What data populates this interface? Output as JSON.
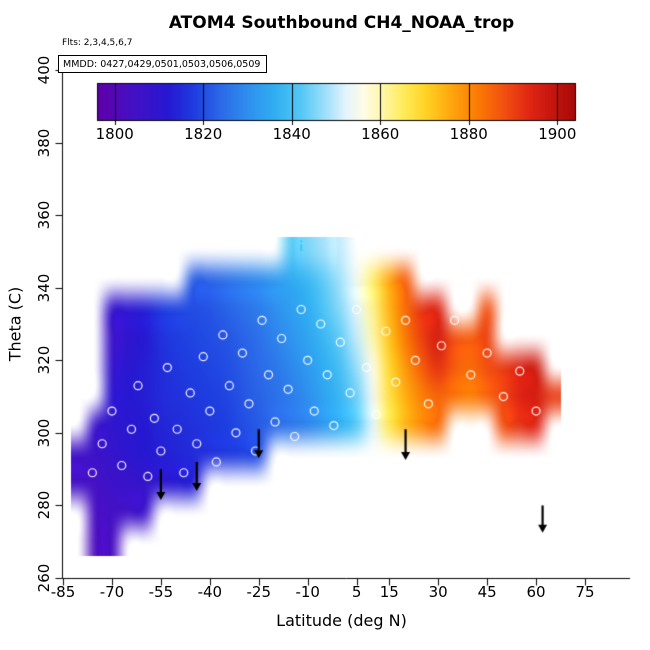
{
  "title": "ATOM4 Southbound CH4_NOAA_trop",
  "flights_note": "Flts: 2,3,4,5,6,7",
  "mmdd_note": "MMDD: 0427,0429,0501,0503,0506,0509",
  "x_axis": {
    "label": "Latitude (deg N)",
    "ticks": [
      -85,
      -70,
      -55,
      -40,
      -25,
      -10,
      5,
      15,
      30,
      45,
      60,
      75
    ]
  },
  "y_axis": {
    "label": "Theta (C)",
    "ticks": [
      260,
      280,
      300,
      320,
      340,
      360,
      380,
      400
    ]
  },
  "colorbar": {
    "ticks": [
      1800,
      1820,
      1840,
      1860,
      1880,
      1900
    ],
    "domain": [
      1796,
      1904
    ],
    "stops": [
      {
        "v": 1796,
        "c": "#5F00A8"
      },
      {
        "v": 1804,
        "c": "#4410C4"
      },
      {
        "v": 1812,
        "c": "#2618D2"
      },
      {
        "v": 1818,
        "c": "#1E3EE0"
      },
      {
        "v": 1824,
        "c": "#2B6AE8"
      },
      {
        "v": 1830,
        "c": "#2F8FEE"
      },
      {
        "v": 1836,
        "c": "#30AEF2"
      },
      {
        "v": 1842,
        "c": "#55C8F5"
      },
      {
        "v": 1848,
        "c": "#A5E2FA"
      },
      {
        "v": 1852,
        "c": "#E2F4FC"
      },
      {
        "v": 1856,
        "c": "#FFFCE8"
      },
      {
        "v": 1860,
        "c": "#FFF7B0"
      },
      {
        "v": 1865,
        "c": "#FFEC5C"
      },
      {
        "v": 1870,
        "c": "#FFD426"
      },
      {
        "v": 1876,
        "c": "#FFA60E"
      },
      {
        "v": 1882,
        "c": "#FB7A04"
      },
      {
        "v": 1888,
        "c": "#F24F10"
      },
      {
        "v": 1894,
        "c": "#DE2413"
      },
      {
        "v": 1904,
        "c": "#A80808"
      }
    ]
  },
  "chart_data": {
    "type": "heatmap",
    "title": "ATOM4 Southbound CH4_NOAA_trop",
    "xlabel": "Latitude (deg N)",
    "ylabel": "Theta (C)",
    "xlim": [
      -85,
      89
    ],
    "ylim": [
      260,
      400
    ],
    "value_scale_ticks": [
      1800,
      1820,
      1840,
      1860,
      1880,
      1900
    ],
    "x_bins": [
      -80,
      -75,
      -70,
      -65,
      -60,
      -55,
      -50,
      -45,
      -40,
      -35,
      -30,
      -25,
      -20,
      -15,
      -10,
      -5,
      0,
      5,
      10,
      15,
      20,
      25,
      30,
      35,
      40,
      45,
      50,
      55,
      60,
      65
    ],
    "y_bins": [
      270,
      278,
      286,
      294,
      302,
      310,
      318,
      326,
      334,
      342,
      350
    ],
    "values": [
      [
        null,
        1802,
        1803,
        null,
        null,
        null,
        null,
        null,
        null,
        null,
        null,
        null,
        null,
        null,
        null,
        null,
        null,
        null,
        null,
        null,
        null,
        null,
        null,
        null,
        null,
        null,
        null,
        null,
        null,
        null
      ],
      [
        null,
        1803,
        1804,
        1805,
        1806,
        null,
        null,
        null,
        null,
        null,
        null,
        null,
        null,
        null,
        null,
        null,
        null,
        null,
        null,
        null,
        null,
        null,
        null,
        null,
        null,
        null,
        null,
        null,
        null,
        null
      ],
      [
        1804,
        1804,
        1806,
        1807,
        1808,
        1810,
        1812,
        1813,
        null,
        null,
        null,
        null,
        null,
        null,
        null,
        null,
        null,
        null,
        null,
        null,
        null,
        null,
        null,
        null,
        null,
        null,
        null,
        null,
        null,
        null
      ],
      [
        1805,
        1806,
        1808,
        1810,
        1812,
        1813,
        1814,
        1815,
        1816,
        1817,
        1818,
        1820,
        null,
        null,
        null,
        null,
        null,
        null,
        null,
        null,
        null,
        null,
        null,
        null,
        null,
        null,
        null,
        null,
        null,
        null
      ],
      [
        null,
        1807,
        1809,
        1811,
        1812,
        1814,
        1815,
        1816,
        1817,
        1818,
        1820,
        1822,
        1824,
        1826,
        1828,
        1832,
        1836,
        1842,
        1852,
        1866,
        1874,
        1880,
        1884,
        null,
        null,
        null,
        1888,
        1892,
        1894,
        null
      ],
      [
        null,
        null,
        1810,
        1812,
        1813,
        1815,
        1816,
        1817,
        1818,
        1819,
        1821,
        1823,
        1825,
        1827,
        1830,
        1834,
        1838,
        1844,
        1854,
        1867,
        1875,
        1881,
        1885,
        1883,
        1881,
        1885,
        1889,
        1894,
        1896,
        1891
      ],
      [
        null,
        null,
        1808,
        1811,
        1813,
        1815,
        1817,
        1818,
        1819,
        1820,
        1822,
        1824,
        1826,
        1829,
        1832,
        1836,
        1840,
        1847,
        1856,
        1869,
        1878,
        1886,
        1892,
        1886,
        1884,
        1888,
        1891,
        1895,
        1897,
        null
      ],
      [
        null,
        null,
        1806,
        1809,
        1812,
        1816,
        1818,
        1819,
        1820,
        1821,
        1823,
        1825,
        1828,
        1831,
        1834,
        1838,
        1843,
        1850,
        1860,
        1872,
        1882,
        1890,
        1896,
        1888,
        1886,
        1890,
        null,
        null,
        null,
        null
      ],
      [
        null,
        null,
        1808,
        1810,
        1813,
        1817,
        1819,
        1820,
        1821,
        1823,
        1825,
        1827,
        1830,
        1833,
        1836,
        1841,
        1846,
        1852,
        1862,
        1874,
        1884,
        1892,
        1894,
        null,
        null,
        1888,
        null,
        null,
        null,
        null
      ],
      [
        null,
        null,
        null,
        null,
        null,
        null,
        null,
        1822,
        1823,
        1825,
        1827,
        1829,
        1832,
        1835,
        1838,
        1843,
        1848,
        1854,
        1864,
        1876,
        1886,
        null,
        null,
        null,
        null,
        null,
        null,
        null,
        null,
        null
      ],
      [
        null,
        null,
        null,
        null,
        null,
        null,
        null,
        null,
        null,
        null,
        null,
        null,
        null,
        1842,
        1845,
        1848,
        1850,
        null,
        null,
        null,
        null,
        null,
        null,
        null,
        null,
        null,
        null,
        null,
        null,
        null
      ]
    ],
    "profile_markers": [
      [
        -76,
        289
      ],
      [
        -73,
        297
      ],
      [
        -70,
        306
      ],
      [
        -67,
        291
      ],
      [
        -64,
        301
      ],
      [
        -62,
        313
      ],
      [
        -59,
        288
      ],
      [
        -57,
        304
      ],
      [
        -55,
        295
      ],
      [
        -53,
        318
      ],
      [
        -50,
        301
      ],
      [
        -48,
        289
      ],
      [
        -46,
        311
      ],
      [
        -44,
        297
      ],
      [
        -42,
        321
      ],
      [
        -40,
        306
      ],
      [
        -38,
        292
      ],
      [
        -36,
        327
      ],
      [
        -34,
        313
      ],
      [
        -32,
        300
      ],
      [
        -30,
        322
      ],
      [
        -28,
        308
      ],
      [
        -26,
        295
      ],
      [
        -24,
        331
      ],
      [
        -22,
        316
      ],
      [
        -20,
        303
      ],
      [
        -18,
        326
      ],
      [
        -16,
        312
      ],
      [
        -14,
        299
      ],
      [
        -12,
        334
      ],
      [
        -10,
        320
      ],
      [
        -8,
        306
      ],
      [
        -6,
        330
      ],
      [
        -4,
        316
      ],
      [
        -2,
        302
      ],
      [
        0,
        325
      ],
      [
        3,
        311
      ],
      [
        5,
        334
      ],
      [
        8,
        318
      ],
      [
        11,
        305
      ],
      [
        14,
        328
      ],
      [
        17,
        314
      ],
      [
        20,
        331
      ],
      [
        23,
        320
      ],
      [
        27,
        308
      ],
      [
        31,
        324
      ],
      [
        35,
        331
      ],
      [
        40,
        316
      ],
      [
        45,
        322
      ],
      [
        50,
        310
      ],
      [
        55,
        317
      ],
      [
        60,
        306
      ]
    ],
    "arrows": [
      {
        "lat": -55,
        "theta_top": 290,
        "theta_bottom": 281.5
      },
      {
        "lat": -44,
        "theta_top": 292,
        "theta_bottom": 284
      },
      {
        "lat": -25,
        "theta_top": 301,
        "theta_bottom": 293
      },
      {
        "lat": 20,
        "theta_top": 301,
        "theta_bottom": 292.5
      },
      {
        "lat": 62,
        "theta_top": 280,
        "theta_bottom": 272.5
      }
    ],
    "top_marker": {
      "lat": -12,
      "theta": 352,
      "color": "#3EC8F4"
    }
  }
}
